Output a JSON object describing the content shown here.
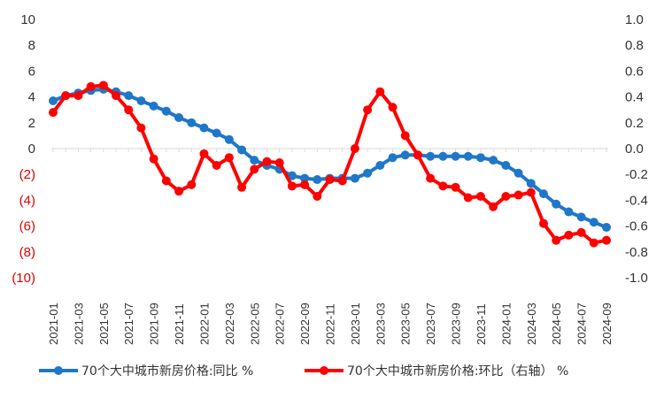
{
  "chart_data": {
    "type": "line",
    "title": "",
    "x": [
      "2021-01",
      "2021-02",
      "2021-03",
      "2021-04",
      "2021-05",
      "2021-06",
      "2021-07",
      "2021-08",
      "2021-09",
      "2021-10",
      "2021-11",
      "2021-12",
      "2022-01",
      "2022-02",
      "2022-03",
      "2022-04",
      "2022-05",
      "2022-06",
      "2022-07",
      "2022-08",
      "2022-09",
      "2022-10",
      "2022-11",
      "2022-12",
      "2023-01",
      "2023-02",
      "2023-03",
      "2023-04",
      "2023-05",
      "2023-06",
      "2023-07",
      "2023-08",
      "2023-09",
      "2023-10",
      "2023-11",
      "2023-12",
      "2024-01",
      "2024-02",
      "2024-03",
      "2024-04",
      "2024-05",
      "2024-06",
      "2024-07",
      "2024-08",
      "2024-09"
    ],
    "x_tick_labels": [
      "2021-01",
      "2021-03",
      "2021-05",
      "2021-07",
      "2021-09",
      "2021-11",
      "2022-01",
      "2022-03",
      "2022-05",
      "2022-07",
      "2022-09",
      "2022-11",
      "2023-01",
      "2023-03",
      "2023-05",
      "2023-07",
      "2023-09",
      "2023-11",
      "2024-01",
      "2024-03",
      "2024-05",
      "2024-07",
      "2024-09"
    ],
    "y_left": {
      "range": [
        -10,
        10
      ],
      "ticks": [
        10,
        8,
        6,
        4,
        2,
        0,
        -2,
        -4,
        -6,
        -8,
        -10
      ],
      "tick_labels": [
        "10",
        "8",
        "6",
        "4",
        "2",
        "0",
        "(2)",
        "(4)",
        "(6)",
        "(8)",
        "(10)"
      ],
      "positive_color": "#333333",
      "negative_color": "#e00000"
    },
    "y_right": {
      "range": [
        -1.0,
        1.0
      ],
      "ticks": [
        1.0,
        0.8,
        0.6,
        0.4,
        0.2,
        0,
        -0.2,
        -0.4,
        -0.6,
        -0.8,
        -1.0
      ],
      "tick_labels": [
        "1.0",
        "0.8",
        "0.6",
        "0.4",
        "0.2",
        "0.0",
        "-0.2",
        "-0.4",
        "-0.6",
        "-0.8",
        "-1.0"
      ]
    },
    "grid": false,
    "legend_position": "bottom",
    "series": [
      {
        "name": "70个大中城市新房价格:同比",
        "unit": "%",
        "axis": "left",
        "color": "#1f77c8",
        "values": [
          3.7,
          4.1,
          4.3,
          4.5,
          4.6,
          4.4,
          4.1,
          3.7,
          3.3,
          2.9,
          2.4,
          2.0,
          1.6,
          1.2,
          0.7,
          -0.1,
          -0.9,
          -1.3,
          -1.6,
          -2.1,
          -2.3,
          -2.4,
          -2.3,
          -2.3,
          -2.3,
          -1.9,
          -1.3,
          -0.7,
          -0.5,
          -0.5,
          -0.6,
          -0.6,
          -0.6,
          -0.6,
          -0.7,
          -0.9,
          -1.3,
          -1.9,
          -2.7,
          -3.5,
          -4.3,
          -4.9,
          -5.3,
          -5.7,
          -6.1
        ]
      },
      {
        "name": "70个大中城市新房价格:环比（右轴）",
        "unit": "%",
        "axis": "right",
        "color": "#ff0000",
        "values": [
          0.28,
          0.41,
          0.41,
          0.48,
          0.49,
          0.41,
          0.3,
          0.16,
          -0.08,
          -0.25,
          -0.33,
          -0.28,
          -0.04,
          -0.13,
          -0.07,
          -0.3,
          -0.16,
          -0.1,
          -0.11,
          -0.29,
          -0.28,
          -0.37,
          -0.24,
          -0.25,
          0.0,
          0.3,
          0.44,
          0.32,
          0.1,
          -0.05,
          -0.23,
          -0.29,
          -0.3,
          -0.38,
          -0.37,
          -0.45,
          -0.37,
          -0.36,
          -0.34,
          -0.58,
          -0.71,
          -0.67,
          -0.65,
          -0.73,
          -0.71
        ]
      }
    ]
  },
  "legend": {
    "items": [
      {
        "label": "70个大中城市新房价格:同比",
        "unit": "%",
        "color": "#1f77c8"
      },
      {
        "label": "70个大中城市新房价格:环比（右轴）",
        "unit": "%",
        "color": "#ff0000"
      }
    ]
  }
}
